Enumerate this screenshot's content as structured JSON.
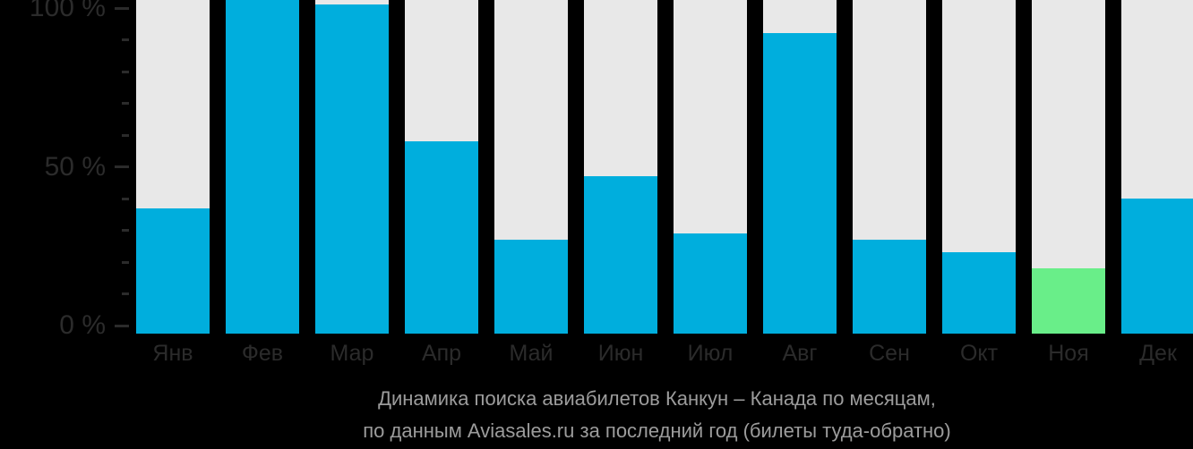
{
  "chart_data": {
    "type": "bar",
    "title": "Динамика поиска авиабилетов Канкун – Канада по месяцам,",
    "subtitle": "по данным Aviasales.ru за последний год (билеты туда-обратно)",
    "categories": [
      "Янв",
      "Фев",
      "Мар",
      "Апр",
      "Май",
      "Июн",
      "Июл",
      "Авг",
      "Сен",
      "Окт",
      "Ноя",
      "Дек"
    ],
    "values": [
      37,
      103,
      101,
      58,
      27,
      47,
      29,
      92,
      27,
      23,
      18,
      40
    ],
    "unit": "%",
    "ylim": [
      0,
      100
    ],
    "highlight_index": 10,
    "y_axis": {
      "major_ticks": [
        {
          "value": 100,
          "label": "100 %"
        },
        {
          "value": 50,
          "label": "50 %"
        },
        {
          "value": 0,
          "label": "0 %"
        }
      ],
      "minor_tick_values": [
        10,
        20,
        30,
        40,
        60,
        70,
        80,
        90
      ]
    },
    "legend": "none",
    "grid": "off",
    "colors": {
      "background": "#000000",
      "bar": "#00aedd",
      "highlight_bar": "#69ee89",
      "track": "#e8e8e8",
      "axis_text": "#2b2b2b",
      "tick": "#2b2b2b",
      "caption_text": "#9c9c9c"
    }
  }
}
